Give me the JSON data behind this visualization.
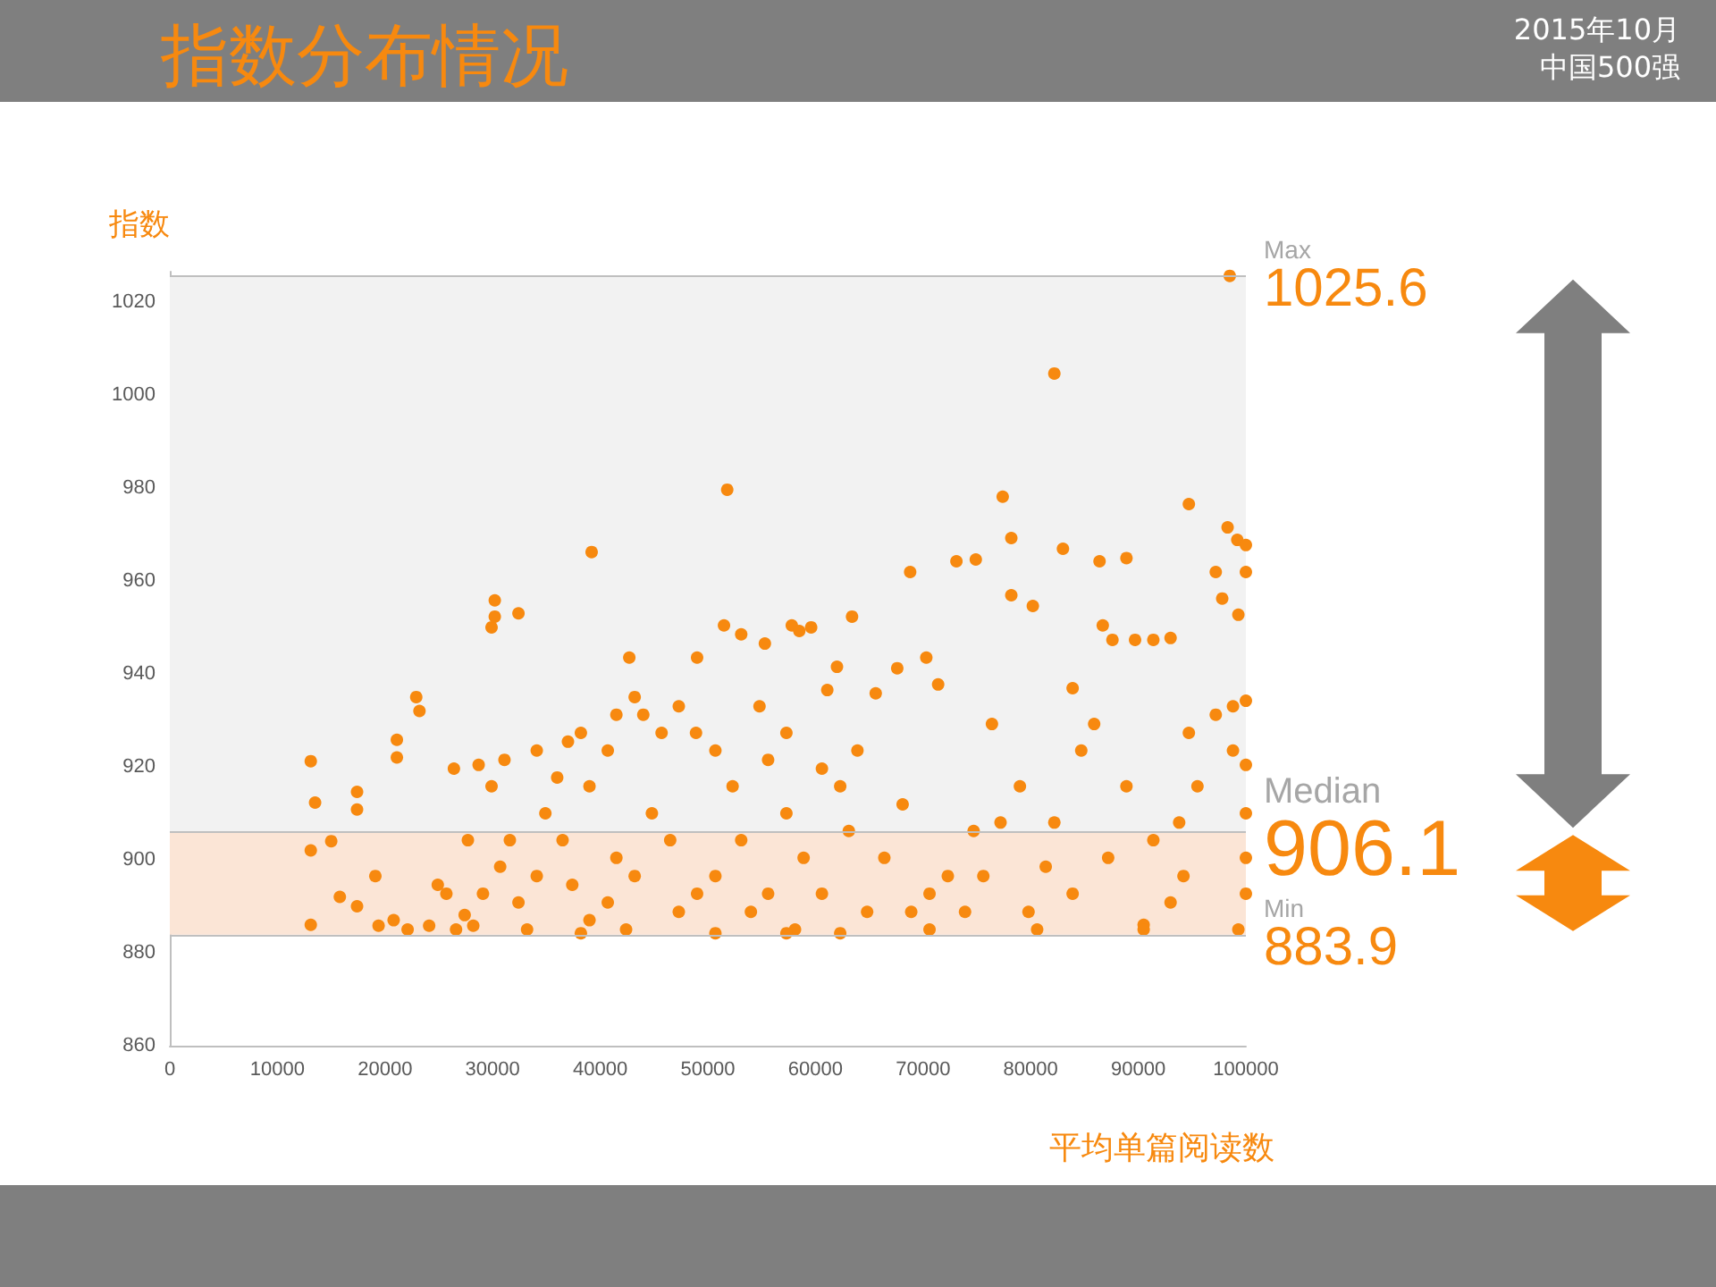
{
  "chart_data": {
    "type": "scatter",
    "title": "指数分布情况",
    "subtitle": "2015年10月",
    "annotations": [
      "中国500强"
    ],
    "xlabel": "平均单篇阅读数",
    "ylabel": "指数",
    "x": [
      13100,
      13500,
      13100,
      13100,
      15000,
      15800,
      17400,
      17400,
      17400,
      19100,
      21100,
      21100,
      22900,
      23200,
      19400,
      20800,
      22100,
      24100,
      26600,
      28200,
      24900,
      27700,
      29900,
      30200,
      30200,
      32400,
      39200,
      26400,
      28700,
      31100,
      34100,
      36000,
      37000,
      39000,
      40700,
      42700,
      43200,
      44000,
      45700,
      47300,
      49000,
      50700,
      51500,
      51800,
      53100,
      55300,
      55600,
      57800,
      58500,
      59600,
      61100,
      62000,
      63400,
      65600,
      67600,
      68800,
      70300,
      71400,
      73100,
      74900,
      77400,
      78200,
      78200,
      80200,
      82200,
      83000,
      86400,
      88900,
      86700,
      87600,
      89700,
      91400,
      93000,
      94700,
      98500,
      98300,
      99200,
      100000,
      97200,
      97800,
      99300,
      100000,
      97200,
      98800,
      100000,
      98800,
      100000,
      100000,
      100000,
      100000,
      94700,
      95500,
      93800,
      94200,
      93000,
      91400,
      90500,
      88900,
      87200,
      84700,
      83900,
      82200,
      81400,
      79800,
      79000,
      77200,
      75600,
      74700,
      73900,
      72300,
      70600,
      68900,
      68100,
      66400,
      64800,
      63100,
      62300,
      60600,
      58900,
      58100,
      57300,
      55600,
      54000,
      53100,
      52300,
      50700,
      49000,
      47300,
      46500,
      44800,
      43200,
      41500,
      40700,
      39000,
      37400,
      36500,
      34900,
      34100,
      32400,
      31600,
      30700,
      29900,
      29100,
      27400,
      25700,
      33200,
      38200,
      42400,
      50700,
      57300,
      62300,
      70600,
      80600,
      90500,
      99300,
      85900,
      83900,
      76400,
      63900,
      60600,
      57300,
      54800,
      48900,
      41500,
      38200
    ],
    "values": [
      921.2,
      912.3,
      902,
      886,
      904,
      892,
      890,
      914.6,
      910.8,
      896.5,
      925.8,
      922,
      935,
      932,
      885.8,
      887,
      885,
      885.8,
      885,
      885.8,
      894.6,
      904.2,
      950,
      952.3,
      955.8,
      953,
      966.2,
      919.6,
      920.4,
      921.5,
      923.5,
      917.7,
      925.4,
      915.8,
      923.5,
      943.5,
      935,
      931.2,
      927.3,
      933,
      943.5,
      923.5,
      950.4,
      979.6,
      948.5,
      946.5,
      921.5,
      950.4,
      949.2,
      950,
      936.5,
      941.5,
      952.3,
      935.8,
      941.2,
      961.9,
      943.5,
      937.7,
      964.2,
      964.6,
      978.1,
      969.2,
      956.9,
      954.6,
      1004.6,
      966.9,
      964.2,
      964.9,
      950.4,
      947.3,
      947.3,
      947.3,
      947.7,
      976.5,
      1025.6,
      971.5,
      968.8,
      967.7,
      961.9,
      956.2,
      952.7,
      961.9,
      931.2,
      933,
      934.2,
      923.5,
      920.4,
      910,
      900.4,
      892.7,
      927.3,
      915.8,
      908,
      896.5,
      890.8,
      904.2,
      886,
      915.8,
      900.4,
      923.5,
      892.7,
      908,
      898.5,
      888.8,
      915.8,
      908,
      896.5,
      906.2,
      888.8,
      896.5,
      892.7,
      888.8,
      911.9,
      900.4,
      888.8,
      906.2,
      915.8,
      892.7,
      900.4,
      885,
      910,
      892.7,
      888.8,
      904.2,
      915.8,
      896.5,
      892.7,
      888.8,
      904.2,
      910,
      896.5,
      900.4,
      890.8,
      887,
      894.6,
      904.2,
      910,
      896.5,
      890.8,
      904.2,
      898.5,
      915.8,
      892.7,
      888.1,
      892.7,
      885,
      884.2,
      885,
      884.2,
      884.2,
      884.2,
      885,
      885,
      885,
      885,
      929.2,
      936.9,
      929.2,
      923.5,
      919.6,
      927.3,
      933,
      927.3,
      931.2,
      927.3
    ],
    "color": "#f7890f",
    "marker": "circle",
    "grid": false,
    "xlim": [
      0,
      100000
    ],
    "xticks": [
      0,
      10000,
      20000,
      30000,
      40000,
      50000,
      60000,
      70000,
      80000,
      90000,
      100000
    ],
    "ylim": [
      860,
      1026.5
    ],
    "yticks": [
      860,
      880,
      900,
      920,
      940,
      960,
      980,
      1000,
      1020
    ],
    "bands": [
      {
        "axis": "y",
        "from": 906.1,
        "to": 1025.6,
        "color": "#f2f2f2"
      },
      {
        "axis": "y",
        "from": 883.9,
        "to": 906.1,
        "color": "#fbe5d6"
      }
    ],
    "ref_lines": [
      {
        "axis": "y",
        "value": 1025.6,
        "label": "Max\n1025.6",
        "color": "#bfbfbf"
      },
      {
        "axis": "y",
        "value": 906.1,
        "label": "Median\n906.1",
        "color": "#bfbfbf"
      },
      {
        "axis": "y",
        "value": 883.9,
        "label": "Min\n883.9",
        "color": "#bfbfbf"
      }
    ]
  }
}
